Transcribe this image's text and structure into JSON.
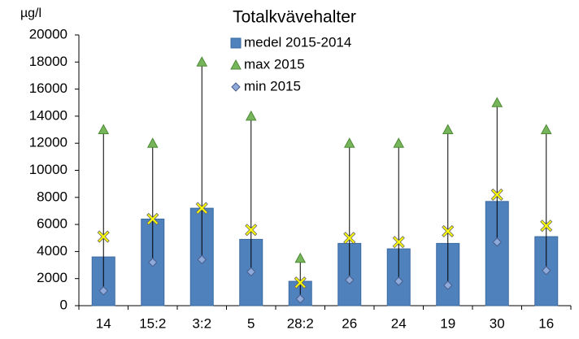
{
  "chart_data": {
    "type": "bar",
    "title": "Totalkvävehalter",
    "y_label": "µg/l",
    "categories": [
      "14",
      "15:2",
      "3:2",
      "5",
      "28:2",
      "26",
      "24",
      "19",
      "30",
      "16"
    ],
    "series": [
      {
        "name": "medel 2015-2014",
        "marker": "bar",
        "color": "#4f81bd",
        "values": [
          3600,
          6400,
          7200,
          4900,
          1800,
          4600,
          4200,
          4600,
          7700,
          5100
        ]
      },
      {
        "name": "max 2015",
        "marker": "triangle",
        "color": "#77b55a",
        "values": [
          13000,
          12000,
          18000,
          14000,
          3500,
          12000,
          12000,
          13000,
          15000,
          13000
        ]
      },
      {
        "name": "min 2015",
        "marker": "diamond",
        "color": "#8ea9db",
        "values": [
          1100,
          3200,
          3400,
          2500,
          500,
          1900,
          1800,
          1500,
          4700,
          2600
        ]
      },
      {
        "marker": "x",
        "color": "#ffff00",
        "values": [
          5100,
          6400,
          7200,
          5600,
          1700,
          5000,
          4700,
          5500,
          8200,
          5900
        ]
      }
    ],
    "ylim": [
      0,
      20000
    ],
    "yticks": [
      0,
      2000,
      4000,
      6000,
      8000,
      10000,
      12000,
      14000,
      16000,
      18000,
      20000
    ]
  }
}
